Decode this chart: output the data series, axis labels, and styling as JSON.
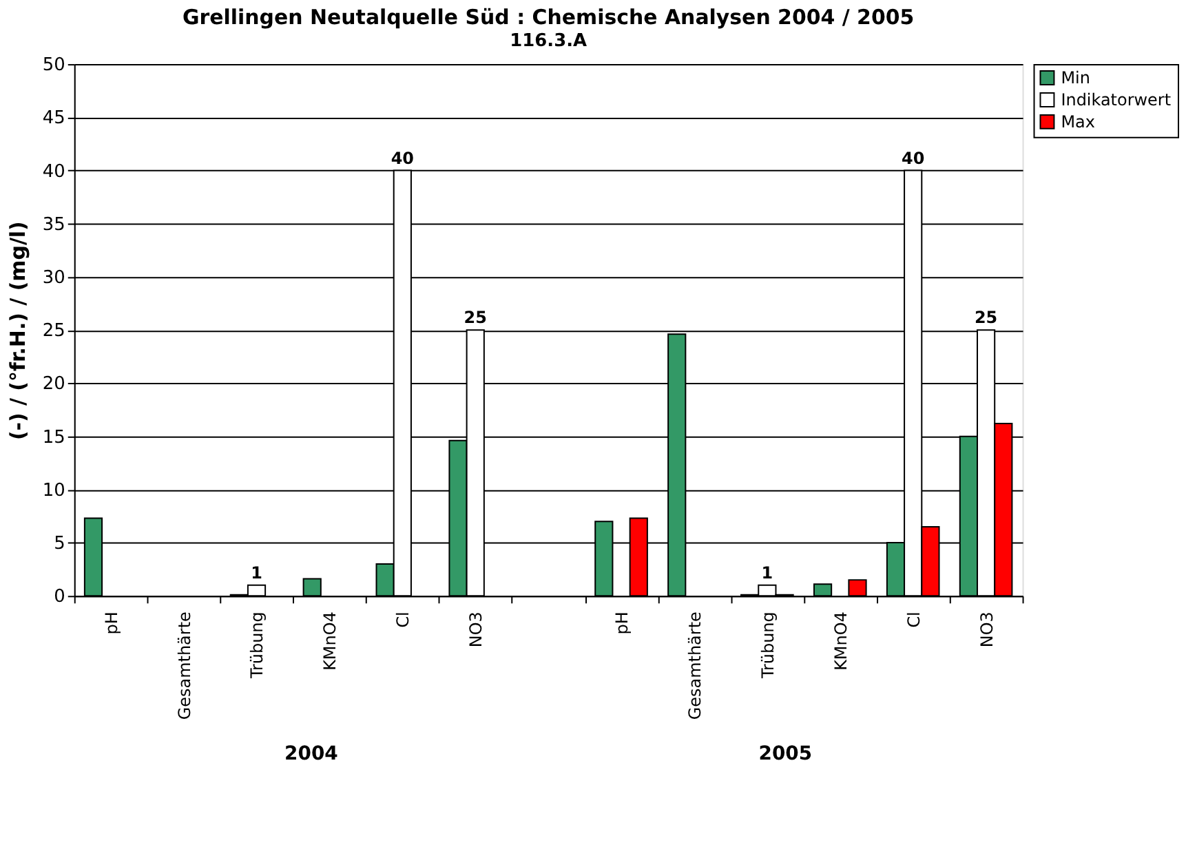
{
  "chart_data": {
    "type": "bar",
    "title": "Grellingen Neutalquelle Süd : Chemische Analysen 2004 / 2005",
    "subtitle": "116.3.A",
    "ylabel": "(-)  /  (°fr.H.)  /  (mg/l)",
    "categories": [
      "pH",
      "Gesamthärte",
      "Trübung",
      "KMnO4",
      "Cl",
      "NO3",
      null,
      "pH",
      "Gesamthärte",
      "Trübung",
      "KMnO4",
      "Cl",
      "NO3"
    ],
    "ylim": [
      0,
      50
    ],
    "yticks": [
      0,
      5,
      10,
      15,
      20,
      25,
      30,
      35,
      40,
      45,
      50
    ],
    "grid": "y",
    "legend": "top right",
    "annotations": [
      "2004",
      "2005"
    ],
    "series": [
      {
        "name": "Min",
        "color": "#339966",
        "values": [
          7.3,
          null,
          0.1,
          1.6,
          3.0,
          14.6,
          null,
          7.0,
          24.6,
          0.1,
          1.1,
          5.0,
          15.0
        ]
      },
      {
        "name": "Indikatorwert",
        "color": "#ffffff",
        "values": [
          null,
          null,
          1,
          null,
          40,
          25,
          null,
          null,
          null,
          1,
          null,
          40,
          25
        ],
        "value_labels": [
          null,
          null,
          "1",
          null,
          "40",
          "25",
          null,
          null,
          null,
          "1",
          null,
          "40",
          "25"
        ]
      },
      {
        "name": "Max",
        "color": "#ff0000",
        "values": [
          null,
          null,
          null,
          null,
          null,
          null,
          null,
          7.3,
          null,
          0.1,
          1.5,
          6.5,
          16.2
        ]
      }
    ]
  }
}
